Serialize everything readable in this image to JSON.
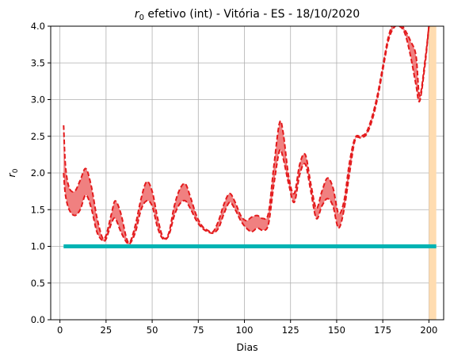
{
  "chart_data": {
    "type": "line",
    "title_prefix": "r",
    "title_sub": "0",
    "title_rest": " efetivo (int) - Vitória - ES - 18/10/2020",
    "xlabel": "Dias",
    "ylabel_main": "r",
    "ylabel_sub": "0",
    "xlim": [
      -5,
      208
    ],
    "ylim": [
      0,
      4.0
    ],
    "xticks": [
      0,
      25,
      50,
      75,
      100,
      125,
      150,
      175,
      200
    ],
    "yticks": [
      0.0,
      0.5,
      1.0,
      1.5,
      2.0,
      2.5,
      3.0,
      3.5,
      4.0
    ],
    "grid": true,
    "colors": {
      "band_fill": "#f08080",
      "band_edge": "#e31a1c",
      "threshold": "#00b3b3",
      "highlight": "#ffdcb0"
    },
    "highlight_span": [
      200,
      204
    ],
    "threshold": {
      "y": 1.0,
      "x_range": [
        2,
        204
      ]
    },
    "series": [
      {
        "x": [
          2,
          3,
          5,
          8,
          11,
          14,
          17,
          20,
          23,
          25,
          28,
          30,
          33,
          36,
          38,
          41,
          44,
          47,
          50,
          53,
          56,
          59,
          62,
          65,
          68,
          71,
          74,
          77,
          80,
          83,
          86,
          89,
          92,
          95,
          98,
          101,
          104,
          107,
          110,
          113,
          116,
          119,
          121,
          124,
          127,
          130,
          133,
          136,
          139,
          142,
          145,
          148,
          151,
          154,
          157,
          160,
          163,
          166,
          169,
          172,
          175,
          178,
          181,
          184,
          187,
          190,
          193,
          195,
          198,
          200
        ],
        "upper": [
          2.65,
          2.1,
          1.8,
          1.75,
          1.9,
          2.06,
          1.82,
          1.4,
          1.12,
          1.15,
          1.45,
          1.62,
          1.45,
          1.12,
          1.06,
          1.3,
          1.65,
          1.88,
          1.75,
          1.38,
          1.12,
          1.18,
          1.55,
          1.78,
          1.85,
          1.65,
          1.42,
          1.28,
          1.22,
          1.2,
          1.35,
          1.58,
          1.72,
          1.6,
          1.42,
          1.35,
          1.4,
          1.42,
          1.38,
          1.45,
          2.1,
          2.68,
          2.55,
          1.95,
          1.72,
          2.12,
          2.25,
          1.85,
          1.52,
          1.75,
          1.93,
          1.8,
          1.45,
          1.62,
          2.15,
          2.48,
          2.5,
          2.55,
          2.75,
          3.05,
          3.45,
          3.85,
          4.05,
          4.05,
          3.95,
          3.8,
          3.6,
          3.05,
          3.55,
          4.0
        ],
        "lower": [
          2.0,
          1.7,
          1.5,
          1.42,
          1.5,
          1.7,
          1.52,
          1.2,
          1.08,
          1.1,
          1.32,
          1.38,
          1.2,
          1.06,
          1.04,
          1.2,
          1.5,
          1.62,
          1.55,
          1.25,
          1.1,
          1.15,
          1.42,
          1.58,
          1.62,
          1.5,
          1.35,
          1.25,
          1.2,
          1.18,
          1.25,
          1.45,
          1.6,
          1.5,
          1.35,
          1.25,
          1.2,
          1.25,
          1.22,
          1.3,
          1.85,
          2.3,
          2.2,
          1.85,
          1.6,
          1.98,
          2.12,
          1.75,
          1.38,
          1.55,
          1.65,
          1.55,
          1.25,
          1.5,
          2.0,
          2.45,
          2.48,
          2.52,
          2.7,
          3.0,
          3.4,
          3.8,
          3.98,
          4.0,
          3.9,
          3.6,
          3.2,
          2.98,
          3.5,
          4.0
        ]
      }
    ]
  }
}
